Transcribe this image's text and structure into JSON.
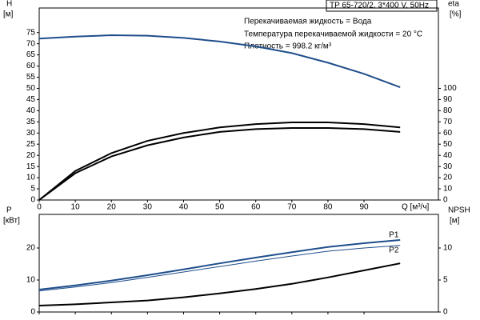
{
  "header": "TP 65-720/2, 3*400 V, 50Hz",
  "notes": [
    "Перекачиваемая жидкость = Вода",
    "Температура перекачиваемой жидкости = 20 °C",
    "Плотность = 998.2 кг/м³"
  ],
  "chart_data": [
    {
      "type": "line",
      "ylabel": "H",
      "yunit": "[м]",
      "y2label": "eta",
      "y2unit": "[%]",
      "xlabel": "Q [м³/ч]",
      "x": [
        0,
        10,
        20,
        30,
        40,
        50,
        60,
        70,
        80,
        90,
        100
      ],
      "xlim": [
        0,
        110.6
      ],
      "xticks": [
        0,
        10,
        20,
        30,
        40,
        50,
        60,
        70,
        80,
        90
      ],
      "ylim": [
        0,
        86
      ],
      "yticks": [
        0,
        5,
        10,
        15,
        20,
        25,
        30,
        35,
        40,
        45,
        50,
        55,
        60,
        65,
        70,
        75
      ],
      "y2lim": [
        0,
        172
      ],
      "y2ticks": [
        0,
        10,
        20,
        30,
        40,
        50,
        60,
        70,
        80,
        90,
        100
      ],
      "series": [
        {
          "color": "#1f4e8c",
          "values": [
            72.3,
            73.2,
            73.8,
            73.6,
            72.6,
            71,
            68.8,
            65.8,
            61.5,
            56.5,
            50.5
          ]
        },
        {
          "color": "#000000",
          "axis": "y2",
          "values": [
            0,
            26,
            42,
            53,
            60,
            65,
            68,
            69.5,
            69.5,
            68,
            65
          ]
        },
        {
          "color": "#000000",
          "axis": "y2",
          "values": [
            0,
            24,
            39,
            49,
            56,
            61,
            63.5,
            64.5,
            64.5,
            63.5,
            61
          ]
        }
      ]
    },
    {
      "type": "line",
      "ylabel": "P",
      "yunit": "[кВт]",
      "y2label": "NPSH",
      "y2unit": "[м]",
      "x": [
        0,
        10,
        20,
        30,
        40,
        50,
        60,
        70,
        80,
        90,
        100
      ],
      "xlim": [
        0,
        110.6
      ],
      "ylim": [
        0,
        30.5
      ],
      "yticks": [
        0,
        10,
        20
      ],
      "y2lim": [
        0,
        15.25
      ],
      "y2ticks": [
        0,
        5,
        10
      ],
      "series": [
        {
          "name": "P1",
          "color": "#1f4e8c",
          "values": [
            7,
            8.3,
            9.8,
            11.5,
            13.3,
            15.2,
            17,
            18.7,
            20.3,
            21.5,
            22.5
          ]
        },
        {
          "name": "P2",
          "color": "#1f4e8c",
          "thin": true,
          "values": [
            6.6,
            7.8,
            9.2,
            10.8,
            12.5,
            14.2,
            15.9,
            17.5,
            19,
            20,
            20.8
          ]
        },
        {
          "color": "#000000",
          "axis": "y2",
          "values": [
            1.0,
            1.2,
            1.5,
            1.8,
            2.3,
            2.9,
            3.6,
            4.4,
            5.4,
            6.5,
            7.6
          ]
        }
      ]
    }
  ]
}
